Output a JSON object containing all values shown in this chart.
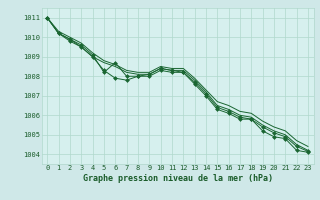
{
  "title": "Graphe pression niveau de la mer (hPa)",
  "xlabel": "Graphe pression niveau de la mer (hPa)",
  "background_color": "#cfe8e8",
  "plot_bg_color": "#d6f0ee",
  "grid_color": "#b0d8cc",
  "line_color": "#1a6632",
  "marker_color": "#1a6632",
  "ylim": [
    1003.5,
    1011.5
  ],
  "xlim": [
    -0.5,
    23.5
  ],
  "yticks": [
    1004,
    1005,
    1006,
    1007,
    1008,
    1009,
    1010,
    1011
  ],
  "xticks": [
    0,
    1,
    2,
    3,
    4,
    5,
    6,
    7,
    8,
    9,
    10,
    11,
    12,
    13,
    14,
    15,
    16,
    17,
    18,
    19,
    20,
    21,
    22,
    23
  ],
  "series": [
    [
      1011.0,
      1010.2,
      1009.9,
      1009.6,
      1009.1,
      1008.2,
      1008.7,
      1008.0,
      1008.0,
      1008.0,
      1008.3,
      1008.2,
      1008.2,
      1007.6,
      1007.0,
      1006.3,
      1006.1,
      1005.8,
      1005.8,
      1005.2,
      1004.9,
      1004.8,
      1004.2,
      1004.1
    ],
    [
      1011.0,
      1010.2,
      1009.9,
      1009.5,
      1009.0,
      1008.7,
      1008.5,
      1008.2,
      1008.1,
      1008.1,
      1008.4,
      1008.3,
      1008.3,
      1007.8,
      1007.2,
      1006.5,
      1006.3,
      1006.0,
      1005.9,
      1005.5,
      1005.2,
      1005.0,
      1004.5,
      1004.2
    ],
    [
      1011.0,
      1010.3,
      1010.0,
      1009.7,
      1009.2,
      1008.8,
      1008.6,
      1008.3,
      1008.2,
      1008.2,
      1008.5,
      1008.4,
      1008.4,
      1007.9,
      1007.3,
      1006.7,
      1006.5,
      1006.2,
      1006.1,
      1005.7,
      1005.4,
      1005.2,
      1004.7,
      1004.4
    ],
    [
      1011.0,
      1010.2,
      1009.8,
      1009.5,
      1009.0,
      1008.3,
      1007.9,
      1007.8,
      1008.0,
      1008.1,
      1008.4,
      1008.3,
      1008.2,
      1007.7,
      1007.1,
      1006.4,
      1006.2,
      1005.9,
      1005.8,
      1005.4,
      1005.1,
      1004.9,
      1004.4,
      1004.15
    ]
  ],
  "marker_series": [
    0,
    3
  ],
  "marker_size": 2,
  "font_color": "#1a5c2a",
  "tick_fontsize": 5,
  "xlabel_fontsize": 6,
  "linewidth": 0.7
}
